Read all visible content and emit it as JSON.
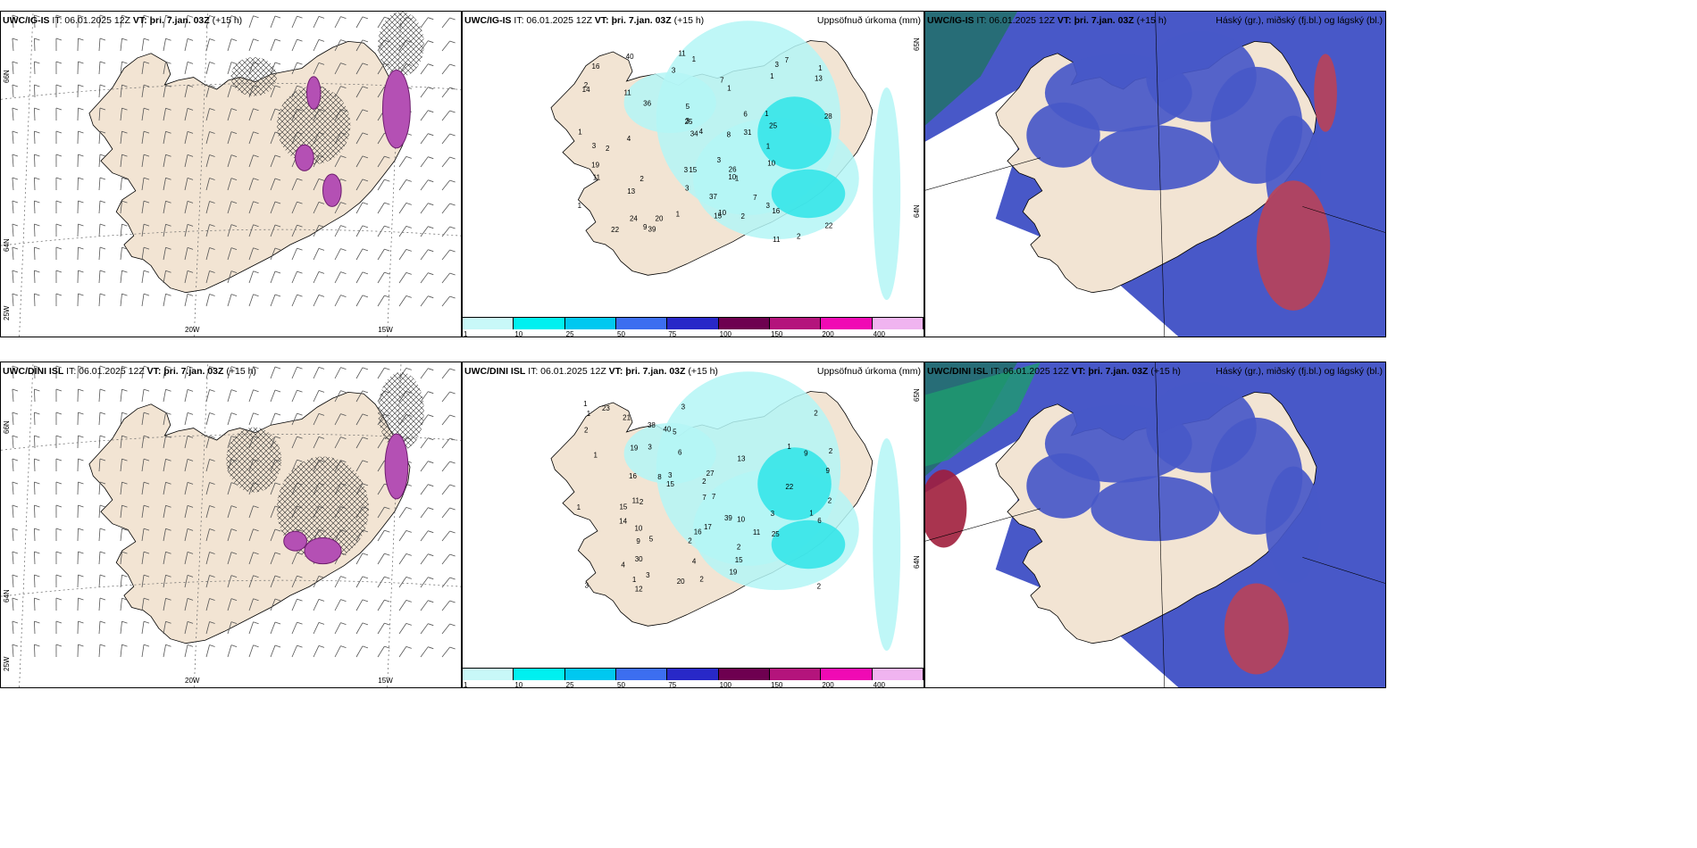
{
  "panels": [
    {
      "id": "top-left",
      "model": "UWC/IG-IS",
      "it": "IT: 06.01.2025 12Z",
      "vt": "VT: þri. 7.jan. 03Z",
      "lead": "(+15 h)",
      "right_title": "",
      "lat_labels": [
        "66N",
        "64N"
      ],
      "lon_labels": [
        "25W",
        "20W",
        "15W"
      ]
    },
    {
      "id": "top-middle",
      "model": "UWC/IG-IS",
      "it": "IT: 06.01.2025 12Z",
      "vt": "VT: þri. 7.jan. 03Z",
      "lead": "(+15 h)",
      "right_title": "Uppsöfnuð úrkoma (mm)",
      "lat_labels": [
        "65N",
        "64N"
      ],
      "values": [
        "1",
        "1",
        "1",
        "1",
        "2",
        "2",
        "2",
        "1",
        "5",
        "7",
        "4",
        "10",
        "11",
        "14",
        "11",
        "13",
        "10",
        "3",
        "3",
        "3",
        "7",
        "16",
        "13",
        "25",
        "24",
        "34",
        "26",
        "40",
        "39",
        "15",
        "19",
        "11",
        "8",
        "22",
        "9",
        "11",
        "25",
        "16",
        "20",
        "36",
        "37",
        "31",
        "22",
        "28",
        "15",
        "2",
        "1",
        "1",
        "1",
        "4",
        "6",
        "3",
        "1",
        "1",
        "2",
        "3",
        "10",
        "3",
        "3",
        "7",
        "3"
      ]
    },
    {
      "id": "top-right",
      "model": "UWC/IG-IS",
      "it": "IT: 06.01.2025 12Z",
      "vt": "VT: þri. 7.jan. 03Z",
      "lead": "(+15 h)",
      "right_title": "Háský (gr.), miðský (fj.bl.) og lágský (bl.)"
    },
    {
      "id": "bottom-left",
      "model": "UWC/DINI ISL",
      "it": "IT: 06.01.2025 12Z",
      "vt": "VT: þri. 7.jan. 03Z",
      "lead": "(+15 h)",
      "right_title": "",
      "lat_labels": [
        "66N",
        "64N"
      ],
      "lon_labels": [
        "25W",
        "20W",
        "15W"
      ]
    },
    {
      "id": "bottom-middle",
      "model": "UWC/DINI ISL",
      "it": "IT: 06.01.2025 12Z",
      "vt": "VT: þri. 7.jan. 03Z",
      "lead": "(+15 h)",
      "right_title": "Uppsöfnuð úrkoma (mm)",
      "lat_labels": [
        "65N",
        "64N"
      ],
      "values": [
        "1",
        "1",
        "1",
        "2",
        "2",
        "2",
        "5",
        "5",
        "3",
        "11",
        "9",
        "7",
        "12",
        "14",
        "16",
        "8",
        "2",
        "4",
        "3",
        "3",
        "9",
        "4",
        "3",
        "11",
        "15",
        "17",
        "10",
        "25",
        "20",
        "40",
        "39",
        "38",
        "9",
        "6",
        "7",
        "16",
        "21",
        "15",
        "15",
        "13",
        "19",
        "2",
        "10",
        "6",
        "23",
        "27",
        "30",
        "22",
        "19",
        "1",
        "2",
        "2",
        "1",
        "1",
        "3",
        "2",
        "2",
        "2",
        "1",
        "3"
      ]
    },
    {
      "id": "bottom-right",
      "model": "UWC/DINI ISL",
      "it": "IT: 06.01.2025 12Z",
      "vt": "VT: þri. 7.jan. 03Z",
      "lead": "(+15 h)",
      "right_title": "Háský (gr.), miðský (fj.bl.) og lágský (bl.)"
    }
  ],
  "colorbar": {
    "ticks": [
      "1",
      "10",
      "25",
      "50",
      "75",
      "100",
      "150",
      "200",
      "400"
    ],
    "colors": [
      "#c8f8f8",
      "#00f0f0",
      "#00c8f0",
      "#3c6ef0",
      "#2828c8",
      "#6e0050",
      "#b4147c",
      "#f00ab4",
      "#f0b4f0"
    ]
  },
  "colors": {
    "land": "#f2e4d3",
    "coast": "#000000",
    "precip_light": "#b4f6f6",
    "precip_mid": "#2ee4e8",
    "high_cloud": "#24706e",
    "mid_cloud": "#4858c8",
    "low_cloud": "#c8404a"
  }
}
